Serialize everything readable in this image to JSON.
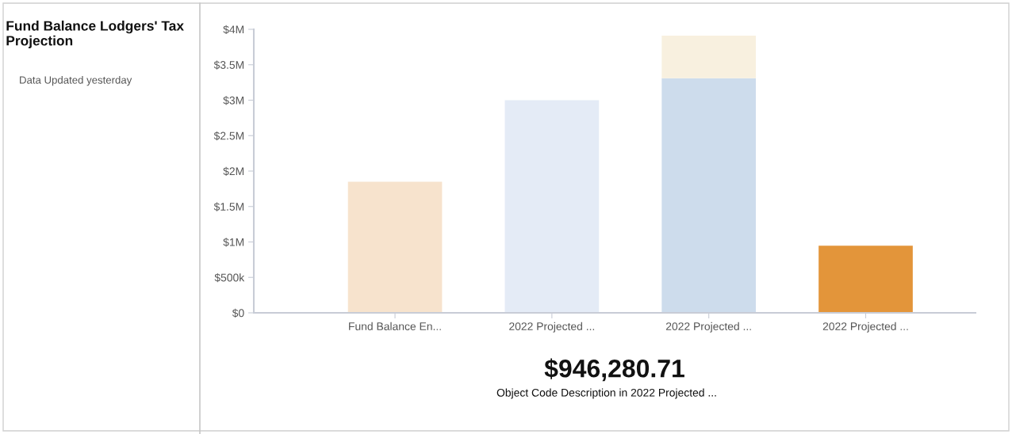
{
  "chart_data": {
    "type": "bar",
    "title": "Fund Balance Lodgers' Tax Projection",
    "subtitle": "Data Updated yesterday",
    "categories": [
      "Fund Balance En...",
      "2022 Projected ...",
      "2022 Projected ...",
      "2022 Projected ..."
    ],
    "stacked": true,
    "series": [
      {
        "colors": [
          "#f7e3cd",
          "#e4ebf6",
          "#cddcec",
          "#e3953a"
        ],
        "values": [
          1850000,
          3000000,
          3310000,
          946280.71
        ]
      },
      {
        "colors": [
          "#f8f0df",
          "#f8f0df",
          "#f8f0df",
          "#f8f0df"
        ],
        "values": [
          null,
          null,
          600000,
          null
        ]
      }
    ],
    "ylim": [
      0,
      4000000
    ],
    "yticks": [
      {
        "value": 0,
        "label": "$0"
      },
      {
        "value": 500000,
        "label": "$500k"
      },
      {
        "value": 1000000,
        "label": "$1M"
      },
      {
        "value": 1500000,
        "label": "$1.5M"
      },
      {
        "value": 2000000,
        "label": "$2M"
      },
      {
        "value": 2500000,
        "label": "$2.5M"
      },
      {
        "value": 3000000,
        "label": "$3M"
      },
      {
        "value": 3500000,
        "label": "$3.5M"
      },
      {
        "value": 4000000,
        "label": "$4M"
      }
    ],
    "grid": false,
    "legend": false,
    "annotations": [
      "$946,280.71",
      "Object Code Description in 2022 Projected ..."
    ]
  }
}
